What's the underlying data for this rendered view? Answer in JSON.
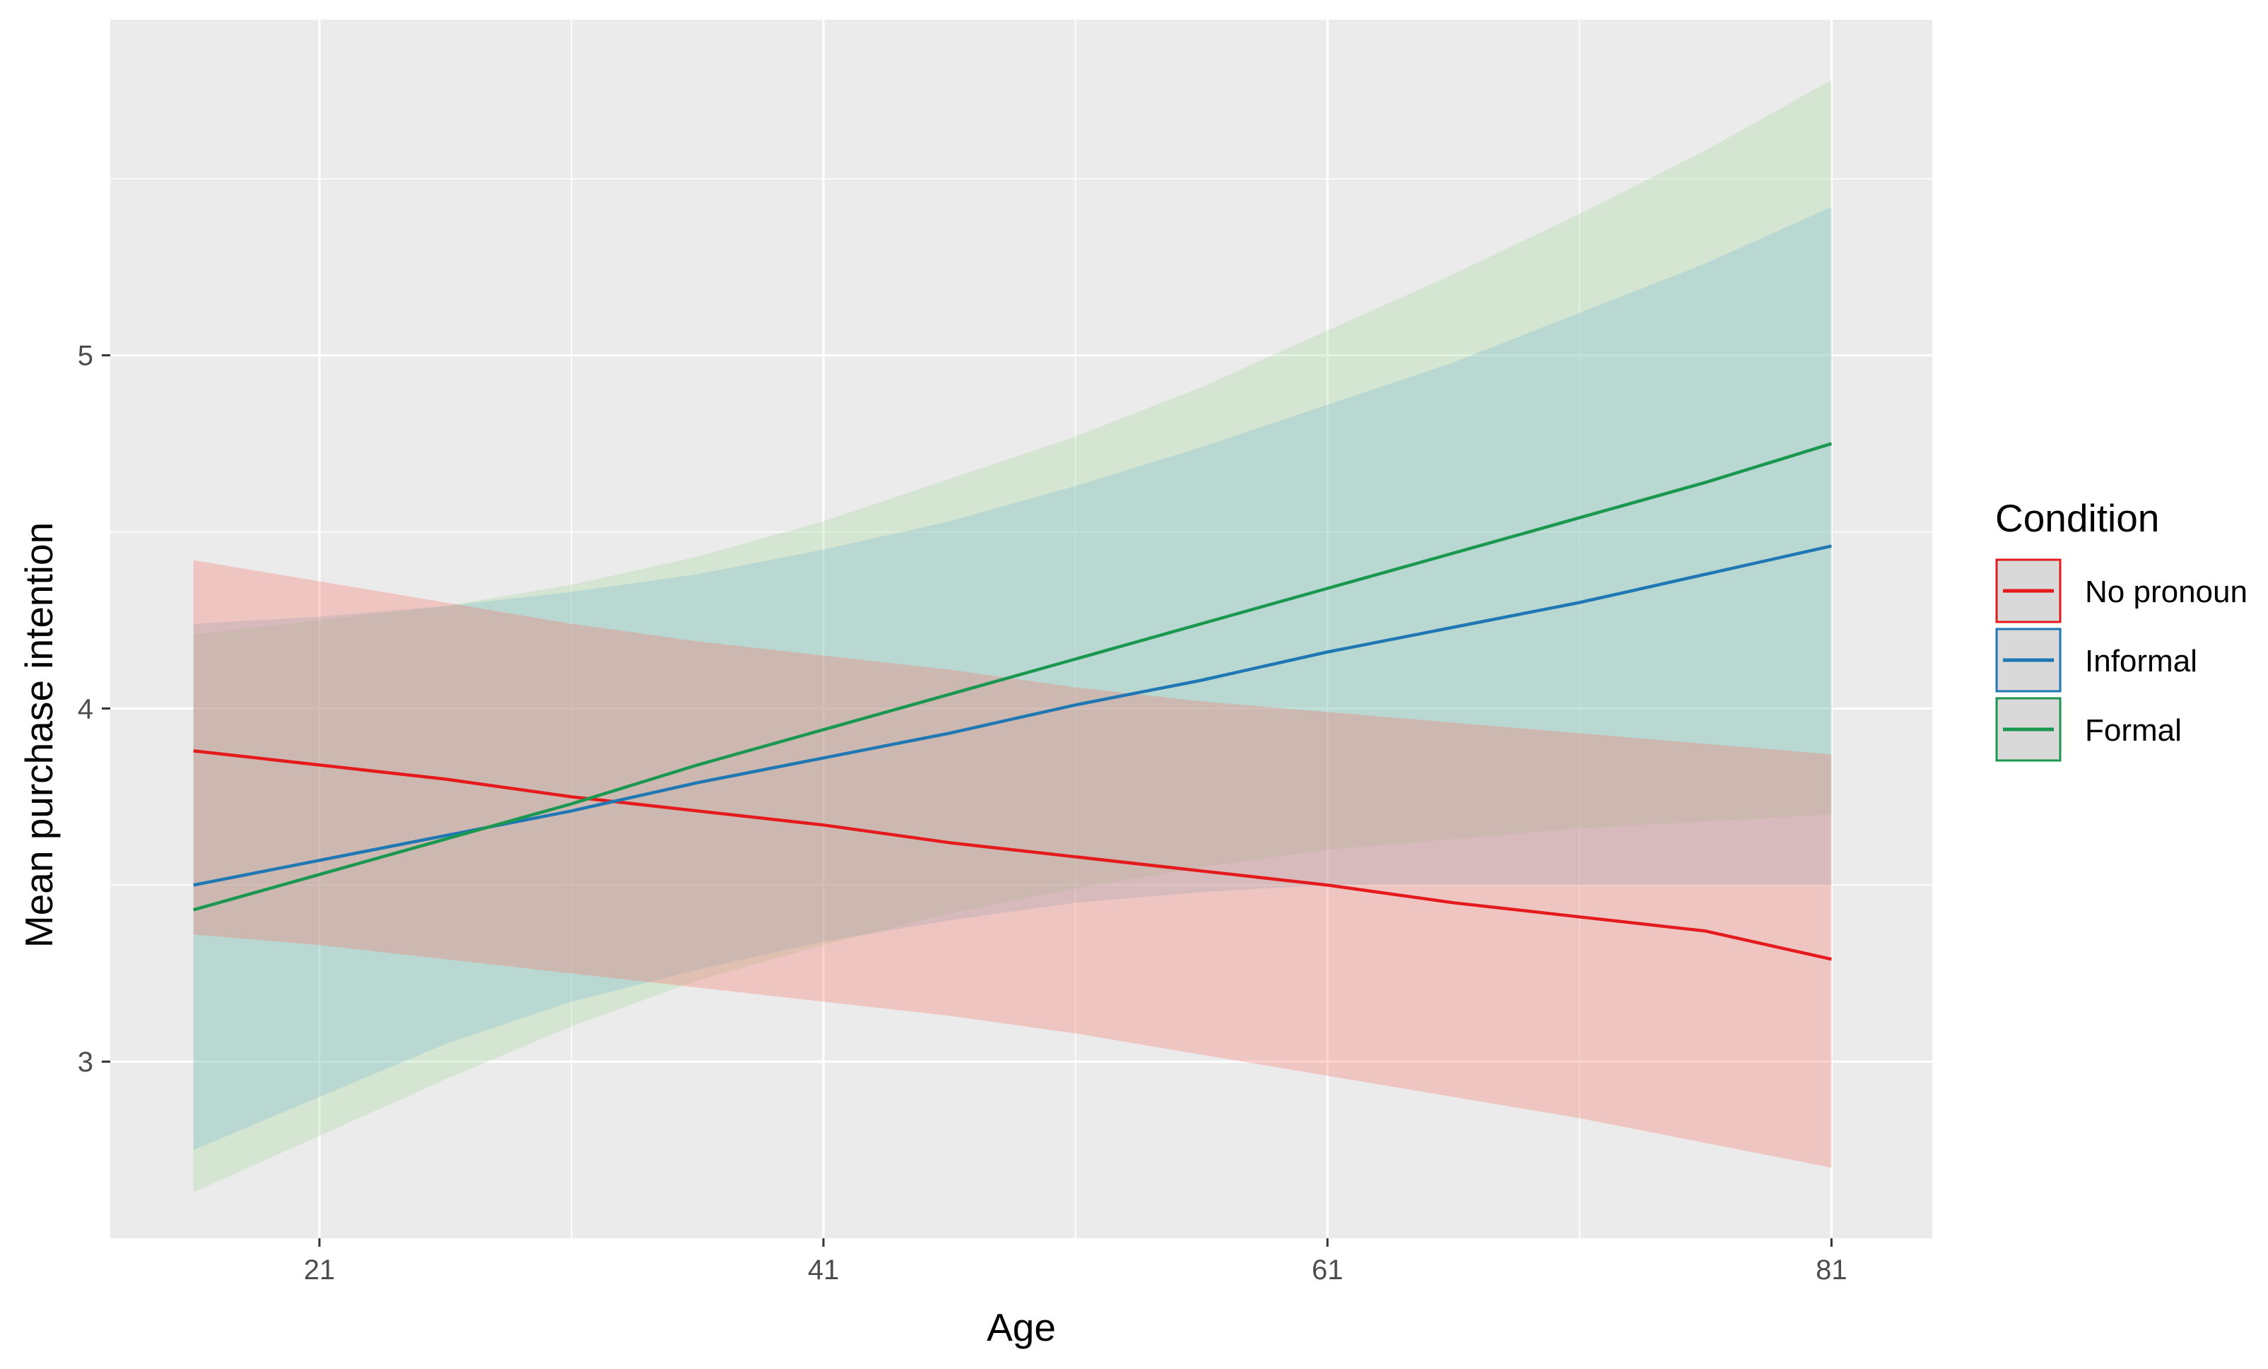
{
  "chart_data": {
    "type": "line",
    "title": "",
    "xlabel": "Age",
    "ylabel": "Mean purchase intention",
    "xlim": [
      12.7,
      85
    ],
    "ylim": [
      2.5,
      5.95
    ],
    "x_ticks": [
      21,
      41,
      61,
      81
    ],
    "y_ticks": [
      3,
      4,
      5
    ],
    "x_minor": [
      31,
      51,
      71
    ],
    "y_minor": [
      3.5,
      4.5,
      5.5
    ],
    "grid": true,
    "background": "#ebebeb",
    "legend": {
      "title": "Condition",
      "placement": "right"
    },
    "x": [
      16,
      21,
      26,
      31,
      36,
      41,
      46,
      51,
      56,
      61,
      66,
      71,
      76,
      81
    ],
    "series": [
      {
        "name": "No pronoun",
        "color": "#e41a1c",
        "fill": "#f8766d",
        "values": [
          3.88,
          3.84,
          3.8,
          3.75,
          3.71,
          3.67,
          3.62,
          3.58,
          3.54,
          3.5,
          3.45,
          3.41,
          3.37,
          3.29
        ],
        "lower": [
          3.36,
          3.33,
          3.29,
          3.25,
          3.21,
          3.17,
          3.13,
          3.08,
          3.02,
          2.96,
          2.9,
          2.84,
          2.77,
          2.7
        ],
        "upper": [
          4.42,
          4.36,
          4.3,
          4.24,
          4.19,
          4.15,
          4.11,
          4.06,
          4.02,
          3.99,
          3.96,
          3.93,
          3.9,
          3.87
        ]
      },
      {
        "name": "Informal",
        "color": "#1f78b4",
        "fill": "#7fbfcf",
        "values": [
          3.5,
          3.57,
          3.64,
          3.71,
          3.79,
          3.86,
          3.93,
          4.01,
          4.08,
          4.16,
          4.23,
          4.3,
          4.38,
          4.46
        ],
        "lower": [
          2.75,
          2.9,
          3.05,
          3.17,
          3.26,
          3.34,
          3.4,
          3.45,
          3.48,
          3.5,
          3.5,
          3.5,
          3.5,
          3.5
        ],
        "upper": [
          4.24,
          4.26,
          4.29,
          4.33,
          4.38,
          4.45,
          4.53,
          4.63,
          4.74,
          4.86,
          4.98,
          5.12,
          5.26,
          5.42
        ]
      },
      {
        "name": "Formal",
        "color": "#1a9850",
        "fill": "#a6d9a0",
        "values": [
          3.43,
          3.53,
          3.63,
          3.73,
          3.84,
          3.94,
          4.04,
          4.14,
          4.24,
          4.34,
          4.44,
          4.54,
          4.64,
          4.75
        ],
        "lower": [
          2.63,
          2.79,
          2.95,
          3.1,
          3.23,
          3.33,
          3.42,
          3.49,
          3.55,
          3.6,
          3.63,
          3.66,
          3.68,
          3.7
        ],
        "upper": [
          4.21,
          4.25,
          4.29,
          4.35,
          4.43,
          4.53,
          4.65,
          4.77,
          4.91,
          5.07,
          5.23,
          5.4,
          5.58,
          5.78
        ]
      }
    ]
  }
}
